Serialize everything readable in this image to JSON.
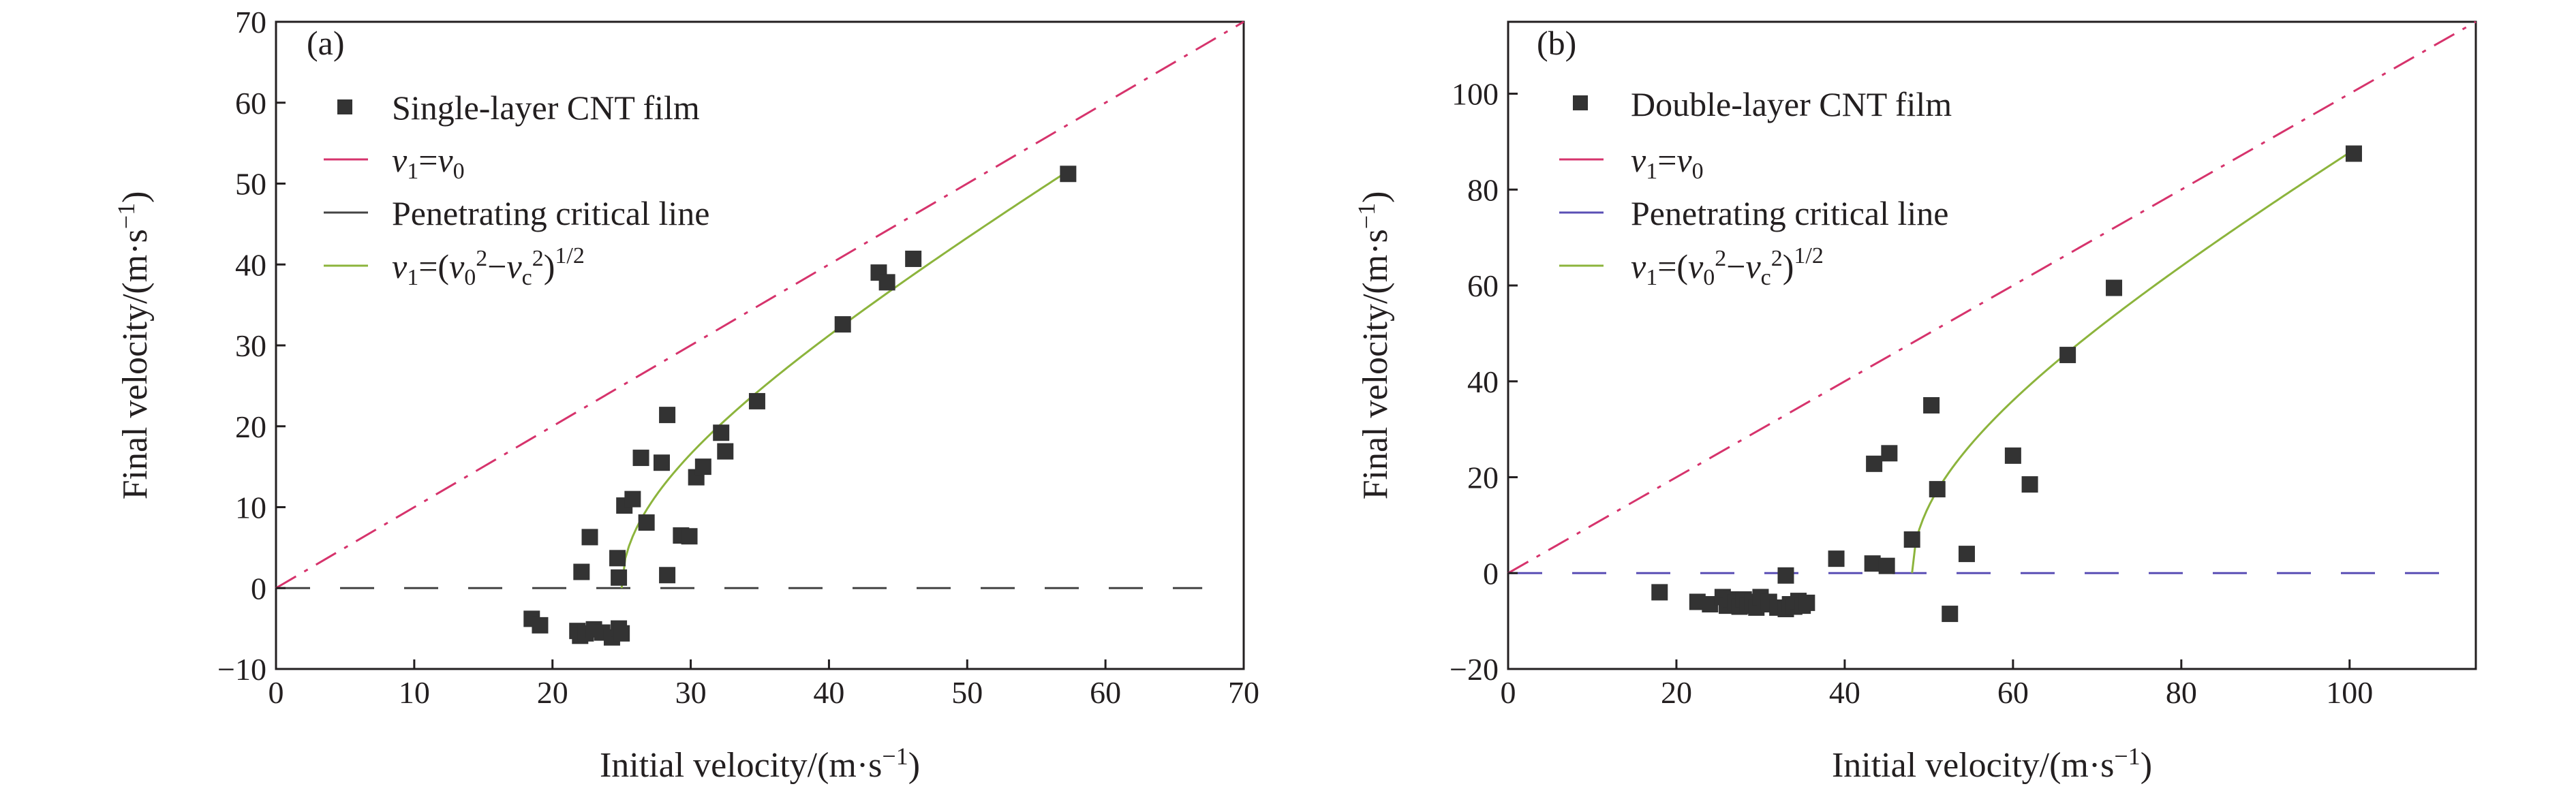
{
  "chart_data": [
    {
      "panel_label": "(a)",
      "type": "scatter",
      "xlabel": "Initial velocity/(m·s",
      "xlabel_sup": "−1",
      "xlabel_tail": ")",
      "ylabel": "Final velocity/(m·s",
      "ylabel_sup": "−1",
      "ylabel_tail": ")",
      "xlim": [
        0,
        70
      ],
      "ylim": [
        -10,
        70
      ],
      "xticks": [
        0,
        10,
        20,
        30,
        40,
        50,
        60,
        70
      ],
      "yticks": [
        -10,
        0,
        10,
        20,
        30,
        40,
        50,
        60,
        70
      ],
      "xtick_labels": [
        "0",
        "10",
        "20",
        "30",
        "40",
        "50",
        "60",
        "70"
      ],
      "ytick_labels": [
        "−10",
        "0",
        "10",
        "20",
        "30",
        "40",
        "50",
        "60",
        "70"
      ],
      "legend_position": "top-left",
      "legend": {
        "scatter": "Single-layer CNT film",
        "identity": "v1=v0",
        "critical": "Penetrating critical line",
        "fit": "v1=(v0^2−vc^2)^1/2"
      },
      "vc": 25,
      "identity_range": [
        0,
        70
      ],
      "critical_range": [
        0,
        67
      ],
      "fit_range": [
        25,
        57
      ],
      "colors": {
        "points": "#333333",
        "identity": "#d6336c",
        "critical": "#444444",
        "fit": "#8cb43c"
      },
      "points": [
        [
          18.5,
          -3.8
        ],
        [
          19.1,
          -4.6
        ],
        [
          21.8,
          -5.3
        ],
        [
          22.0,
          -5.9
        ],
        [
          22.4,
          -5.6
        ],
        [
          23.0,
          -5.1
        ],
        [
          23.6,
          -5.5
        ],
        [
          24.3,
          -6.1
        ],
        [
          24.8,
          -5.0
        ],
        [
          25.0,
          -5.6
        ],
        [
          22.1,
          2.0
        ],
        [
          22.7,
          6.3
        ],
        [
          24.8,
          1.3
        ],
        [
          24.7,
          3.7
        ],
        [
          25.2,
          10.2
        ],
        [
          25.8,
          11.0
        ],
        [
          26.4,
          16.1
        ],
        [
          26.8,
          8.1
        ],
        [
          27.9,
          15.5
        ],
        [
          28.3,
          1.6
        ],
        [
          28.3,
          21.4
        ],
        [
          29.3,
          6.5
        ],
        [
          29.9,
          6.4
        ],
        [
          30.4,
          13.7
        ],
        [
          30.9,
          15.0
        ],
        [
          32.2,
          19.2
        ],
        [
          32.5,
          16.9
        ],
        [
          34.8,
          23.1
        ],
        [
          41.0,
          32.6
        ],
        [
          43.6,
          39.0
        ],
        [
          44.2,
          37.8
        ],
        [
          46.1,
          40.7
        ],
        [
          57.3,
          51.2
        ]
      ]
    },
    {
      "panel_label": "(b)",
      "type": "scatter",
      "xlabel": "Initial velocity/(m·s",
      "xlabel_sup": "−1",
      "xlabel_tail": ")",
      "ylabel": "Final velocity/(m·s",
      "ylabel_sup": "−1",
      "ylabel_tail": ")",
      "xlim": [
        0,
        115
      ],
      "ylim": [
        -20,
        115
      ],
      "xticks": [
        0,
        20,
        40,
        60,
        80,
        100
      ],
      "yticks": [
        -20,
        0,
        20,
        40,
        60,
        80,
        100
      ],
      "xtick_labels": [
        "0",
        "20",
        "40",
        "60",
        "80",
        "100"
      ],
      "ytick_labels": [
        "−20",
        "0",
        "20",
        "40",
        "60",
        "80",
        "100"
      ],
      "legend_position": "top-left",
      "legend": {
        "scatter": "Double-layer CNT film",
        "identity": "v1=v0",
        "critical": "Penetrating critical line",
        "fit": "v1=(v0^2−vc^2)^1/2"
      },
      "vc": 48,
      "identity_range": [
        0,
        115
      ],
      "critical_range": [
        0,
        112
      ],
      "fit_range": [
        48,
        100
      ],
      "colors": {
        "points": "#333333",
        "identity": "#d6336c",
        "critical": "#5a4fb5",
        "fit": "#8cb43c"
      },
      "points": [
        [
          18.0,
          -4.0
        ],
        [
          22.5,
          -6.0
        ],
        [
          24.0,
          -6.5
        ],
        [
          25.5,
          -5.0
        ],
        [
          26.0,
          -6.8
        ],
        [
          26.5,
          -5.5
        ],
        [
          27.0,
          -6.2
        ],
        [
          27.5,
          -7.0
        ],
        [
          28.0,
          -5.5
        ],
        [
          28.5,
          -6.8
        ],
        [
          29.0,
          -6.0
        ],
        [
          29.5,
          -7.2
        ],
        [
          30.0,
          -5.0
        ],
        [
          30.5,
          -6.5
        ],
        [
          31.0,
          -6.0
        ],
        [
          32.0,
          -7.2
        ],
        [
          33.0,
          -7.5
        ],
        [
          33.5,
          -6.5
        ],
        [
          34.0,
          -7.0
        ],
        [
          34.5,
          -5.8
        ],
        [
          35.0,
          -6.8
        ],
        [
          35.5,
          -6.2
        ],
        [
          33.0,
          -0.5
        ],
        [
          39.0,
          3.0
        ],
        [
          43.3,
          2.0
        ],
        [
          43.5,
          22.8
        ],
        [
          45.0,
          1.5
        ],
        [
          45.3,
          25.0
        ],
        [
          48.0,
          7.0
        ],
        [
          50.3,
          35.0
        ],
        [
          51.0,
          17.5
        ],
        [
          52.5,
          -8.5
        ],
        [
          54.5,
          4.0
        ],
        [
          60.0,
          24.5
        ],
        [
          62.0,
          18.5
        ],
        [
          66.5,
          45.5
        ],
        [
          72.0,
          59.5
        ],
        [
          100.5,
          87.5
        ]
      ]
    }
  ]
}
